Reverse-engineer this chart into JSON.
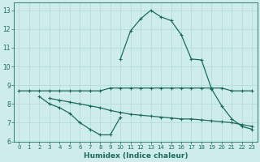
{
  "xlabel": "Humidex (Indice chaleur)",
  "x_values": [
    0,
    1,
    2,
    3,
    4,
    5,
    6,
    7,
    8,
    9,
    10,
    11,
    12,
    13,
    14,
    15,
    16,
    17,
    18,
    19,
    20,
    21,
    22,
    23
  ],
  "line1_x": [
    0,
    1,
    2,
    3,
    4,
    5,
    6,
    7,
    8,
    9,
    10,
    11,
    12,
    13,
    14,
    15,
    16,
    17,
    18,
    19,
    20,
    21,
    22,
    23
  ],
  "line1_y": [
    8.7,
    8.7,
    8.7,
    8.7,
    8.7,
    8.7,
    8.7,
    8.7,
    8.7,
    8.85,
    8.85,
    8.85,
    8.85,
    8.85,
    8.85,
    8.85,
    8.85,
    8.85,
    8.85,
    8.85,
    8.85,
    8.7,
    8.7,
    8.7
  ],
  "line2_x": [
    2,
    3,
    4,
    5,
    6,
    7,
    8,
    9,
    10
  ],
  "line2_y": [
    8.4,
    8.0,
    7.8,
    7.5,
    7.0,
    6.65,
    6.35,
    6.35,
    7.3
  ],
  "line3_x": [
    3,
    4,
    5,
    6,
    7,
    8,
    9,
    10,
    11,
    12,
    13,
    14,
    15,
    16,
    17,
    18,
    19,
    20,
    21,
    22,
    23
  ],
  "line3_y": [
    8.3,
    8.2,
    8.1,
    8.0,
    7.9,
    7.8,
    7.65,
    7.55,
    7.45,
    7.4,
    7.35,
    7.3,
    7.25,
    7.2,
    7.2,
    7.15,
    7.1,
    7.05,
    7.0,
    6.9,
    6.8
  ],
  "line4_x": [
    10,
    11,
    12,
    13,
    14,
    15,
    16,
    17,
    18,
    19,
    20,
    21,
    22,
    23
  ],
  "line4_y": [
    10.4,
    11.9,
    12.55,
    13.0,
    12.65,
    12.45,
    11.7,
    10.4,
    10.35,
    8.8,
    7.9,
    7.2,
    6.8,
    6.65
  ],
  "line_color": "#1a6b5e",
  "bg_color": "#ceecea",
  "grid_color": "#b8dedd",
  "ylim": [
    6.0,
    13.4
  ],
  "xlim": [
    -0.5,
    23.5
  ],
  "yticks": [
    6,
    7,
    8,
    9,
    10,
    11,
    12,
    13
  ],
  "xticks": [
    0,
    1,
    2,
    3,
    4,
    5,
    6,
    7,
    8,
    9,
    10,
    11,
    12,
    13,
    14,
    15,
    16,
    17,
    18,
    19,
    20,
    21,
    22,
    23
  ]
}
